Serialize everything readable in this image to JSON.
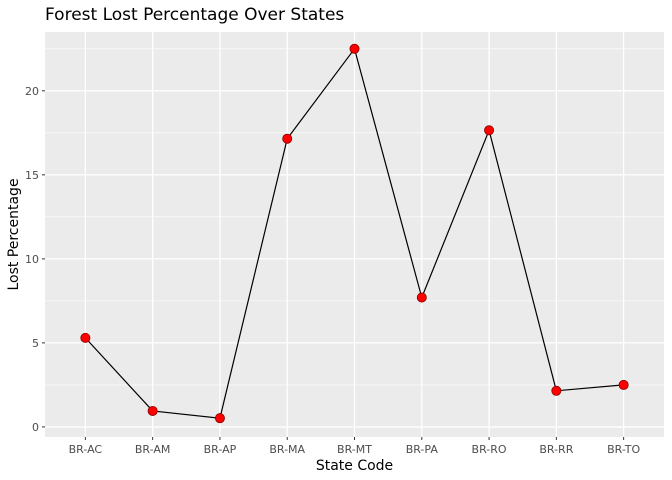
{
  "chart_data": {
    "type": "line",
    "title": "Forest Lost Percentage Over States",
    "xlabel": "State Code",
    "ylabel": "Lost Percentage",
    "categories": [
      "BR-AC",
      "BR-AM",
      "BR-AP",
      "BR-MA",
      "BR-MT",
      "BR-PA",
      "BR-RO",
      "BR-RR",
      "BR-TO"
    ],
    "series": [
      {
        "values": [
          5.3,
          0.95,
          0.52,
          17.15,
          22.5,
          7.7,
          17.65,
          2.15,
          2.5
        ]
      }
    ],
    "ylim": [
      -0.6,
      23.5
    ],
    "yticks": [
      0,
      5,
      10,
      15,
      20
    ],
    "ytick_labels": [
      "0",
      "5",
      "10",
      "15",
      "20"
    ],
    "grid": true,
    "legend": "none",
    "colors": {
      "panel": "#ebebeb",
      "grid_major": "#ffffff",
      "line": "#000000",
      "point": "#ff0000",
      "point_outline": "#8b0000"
    }
  }
}
